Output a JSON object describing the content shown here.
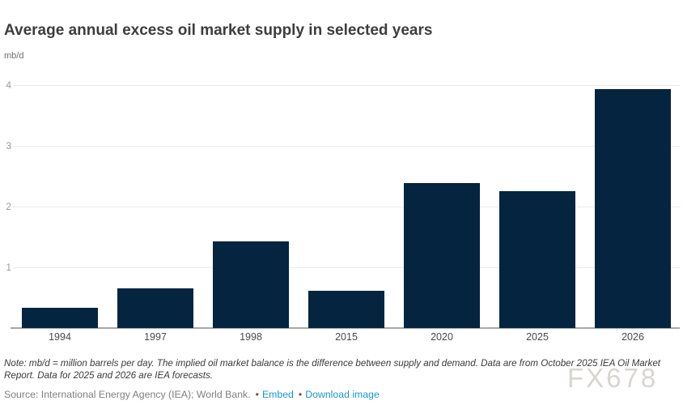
{
  "header": {
    "title": "Average annual excess oil market supply in selected years",
    "unit": "mb/d"
  },
  "chart_data": {
    "type": "bar",
    "categories": [
      "1994",
      "1997",
      "1998",
      "2015",
      "2020",
      "2025",
      "2026"
    ],
    "values": [
      0.34,
      0.66,
      1.43,
      0.61,
      2.39,
      2.25,
      3.94
    ],
    "title": "Average annual excess oil market supply in selected years",
    "xlabel": "",
    "ylabel": "mb/d",
    "ylim": [
      0,
      4.3
    ],
    "yticks": [
      1,
      2,
      3,
      4
    ],
    "grid": true,
    "legend": false,
    "bar_color": "#052440"
  },
  "footer": {
    "note_lines": [
      "Note: mb/d = million barrels per day. The implied oil market balance is the difference between supply and demand. Data are from October 2025 IEA Oil Market",
      "Report. Data for 2025 and 2026 are IEA forecasts."
    ],
    "source": "Source: International Energy Agency (IEA); World Bank.",
    "bullet": "•",
    "links": [
      {
        "label": "Embed"
      },
      {
        "label": "Download image"
      }
    ]
  },
  "watermark": "FX678",
  "colors": {
    "bar": "#052440",
    "gridline": "#ececec",
    "axis_line": "#a8a8a8",
    "y_label": "#9b9b9b",
    "x_label": "#4a4a4a",
    "link": "#1a96d3",
    "bullet": "#8f3b2d",
    "watermark": "#b9b4ad"
  }
}
